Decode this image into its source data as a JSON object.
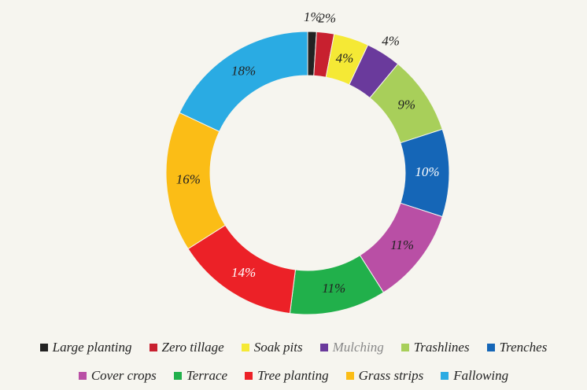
{
  "chart_data": {
    "type": "donut",
    "categories": [
      "Large planting",
      "Zero tillage",
      "Soak pits",
      "Mulching",
      "Trashlines",
      "Trenches",
      "Cover crops",
      "Terrace",
      "Tree planting",
      "Grass strips",
      "Fallowing"
    ],
    "values": [
      1,
      2,
      4,
      4,
      9,
      10,
      11,
      11,
      14,
      16,
      18
    ],
    "value_labels": [
      "1%",
      "2%",
      "4%",
      "4%",
      "9%",
      "10%",
      "11%",
      "11%",
      "14%",
      "16%",
      "18%"
    ],
    "colors": [
      "#222222",
      "#c8202f",
      "#f5e935",
      "#6a3a9c",
      "#a8cf5a",
      "#1566b7",
      "#b94fa5",
      "#21b04b",
      "#ec2127",
      "#fbbd16",
      "#2aabe3"
    ]
  }
}
